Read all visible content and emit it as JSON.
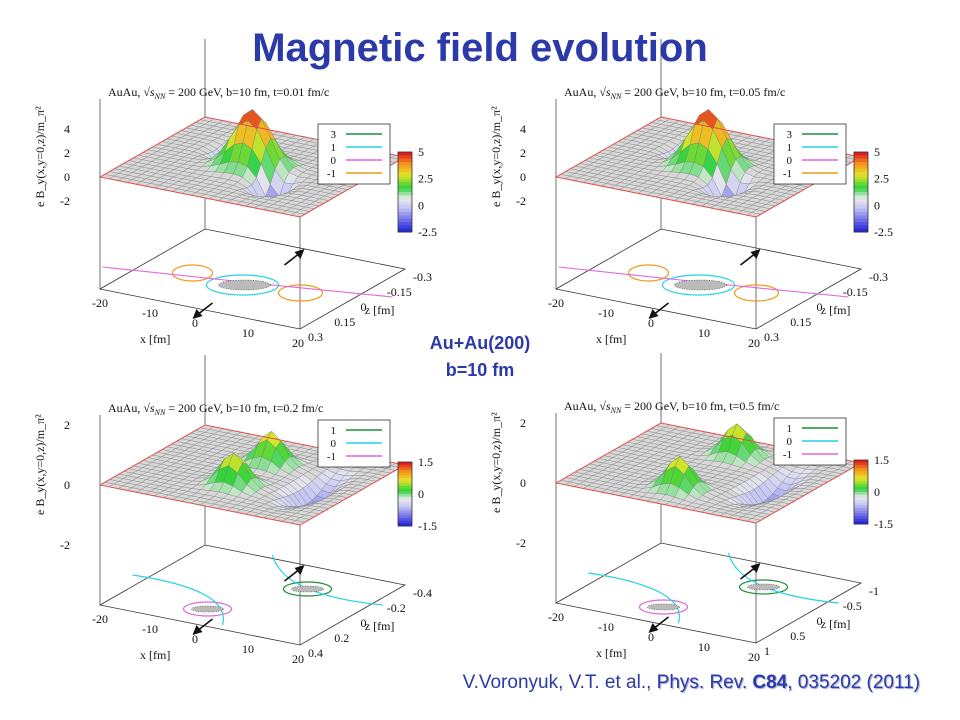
{
  "page": {
    "title": "Magnetic field  evolution",
    "center_label": [
      "Au+Au(200)",
      "b=10 fm"
    ],
    "citation": {
      "authors": "V.Voronyuk, V.T. et  al., ",
      "journal": "Phys. Rev. ",
      "volume": "C84",
      "rest": ", 035202  (2011)"
    }
  },
  "chart_data": [
    {
      "type": "surface3d",
      "title_prefix": "AuAu,",
      "title_energy": "= 200 GeV,  b=10 fm,  t=0.01 fm/c",
      "zlabel": "e B_y(x,y=0,z)/m_π²",
      "xlabel": "x [fm]",
      "ylabel": "z [fm]",
      "x_ticks": [
        "-20",
        "-10",
        "0",
        "10",
        "20"
      ],
      "y_ticks": [
        "-0.3",
        "-0.15",
        "0",
        "0.15",
        "0.3"
      ],
      "z_ticks": [
        "4",
        "2",
        "0",
        "-2"
      ],
      "colorbar_ticks": [
        "5",
        "2.5",
        "0",
        "-2.5"
      ],
      "contour_legend": [
        {
          "label": "3",
          "color": "#1f8f3a"
        },
        {
          "label": "1",
          "color": "#22d3e6"
        },
        {
          "label": "0",
          "color": "#e066e0"
        },
        {
          "label": "-1",
          "color": "#f29a1a"
        }
      ],
      "peak": 4.8,
      "trough": -2.5
    },
    {
      "type": "surface3d",
      "title_prefix": "AuAu,",
      "title_energy": "= 200 GeV,  b=10 fm,  t=0.05 fm/c",
      "zlabel": "e B_y(x,y=0,z)/m_π²",
      "xlabel": "x [fm]",
      "ylabel": "z [fm]",
      "x_ticks": [
        "-20",
        "-10",
        "0",
        "10",
        "20"
      ],
      "y_ticks": [
        "-0.3",
        "-0.15",
        "0",
        "0.15",
        "0.3"
      ],
      "z_ticks": [
        "4",
        "2",
        "0",
        "-2"
      ],
      "colorbar_ticks": [
        "5",
        "2.5",
        "0",
        "-2.5"
      ],
      "contour_legend": [
        {
          "label": "3",
          "color": "#1f8f3a"
        },
        {
          "label": "1",
          "color": "#22d3e6"
        },
        {
          "label": "0",
          "color": "#e066e0"
        },
        {
          "label": "-1",
          "color": "#f29a1a"
        }
      ],
      "peak": 4.8,
      "trough": -2.0
    },
    {
      "type": "surface3d",
      "title_prefix": "AuAu,",
      "title_energy": "= 200 GeV,  b=10 fm,  t=0.2 fm/c",
      "zlabel": "e B_y(x,y=0,z)/m_π²",
      "xlabel": "x [fm]",
      "ylabel": "z [fm]",
      "x_ticks": [
        "-20",
        "-10",
        "0",
        "10",
        "20"
      ],
      "y_ticks": [
        "-0.4",
        "-0.2",
        "0",
        "0.2",
        "0.4"
      ],
      "z_ticks": [
        "2",
        "0",
        "-2"
      ],
      "colorbar_ticks": [
        "1.5",
        "0",
        "-1.5"
      ],
      "contour_legend": [
        {
          "label": "1",
          "color": "#1f8f3a"
        },
        {
          "label": "0",
          "color": "#22d3e6"
        },
        {
          "label": "-1",
          "color": "#e066e0"
        }
      ],
      "peak": 1.5,
      "trough": -1.5
    },
    {
      "type": "surface3d",
      "title_prefix": "AuAu,",
      "title_energy": "= 200 GeV,  b=10 fm,  t=0.5 fm/c",
      "zlabel": "e B_y(x,y=0,z)/m_π²",
      "xlabel": "x [fm]",
      "ylabel": "z [fm]",
      "x_ticks": [
        "-20",
        "-10",
        "0",
        "10",
        "20"
      ],
      "y_ticks": [
        "-1",
        "-0.5",
        "0",
        "0.5",
        "1"
      ],
      "z_ticks": [
        "2",
        "0",
        "-2"
      ],
      "colorbar_ticks": [
        "1.5",
        "0",
        "-1.5"
      ],
      "contour_legend": [
        {
          "label": "1",
          "color": "#1f8f3a"
        },
        {
          "label": "0",
          "color": "#22d3e6"
        },
        {
          "label": "-1",
          "color": "#e066e0"
        }
      ],
      "peak": 1.5,
      "trough": -1.5
    }
  ]
}
